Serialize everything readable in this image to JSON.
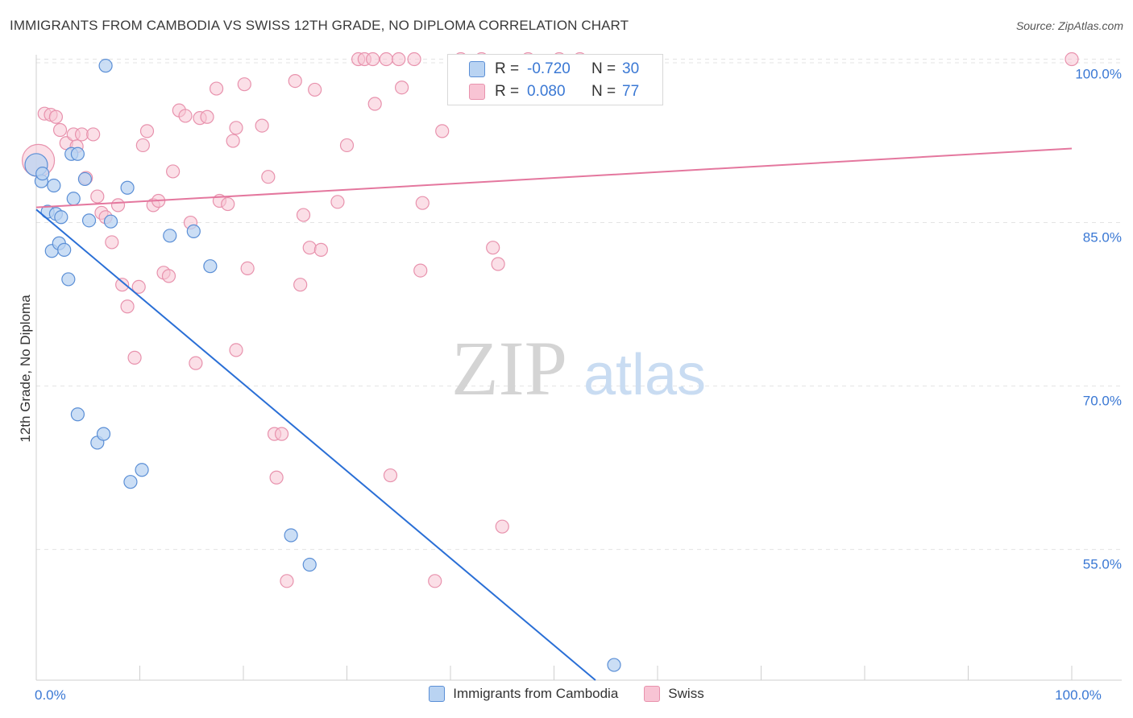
{
  "title": "IMMIGRANTS FROM CAMBODIA VS SWISS 12TH GRADE, NO DIPLOMA CORRELATION CHART",
  "source": "Source: ZipAtlas.com",
  "watermark": {
    "zip": "ZIP",
    "atlas": "atlas"
  },
  "stats": {
    "r_label": "R =",
    "n_label": "N =",
    "rows": [
      {
        "series": "Immigrants from Cambodia",
        "r": "-0.720",
        "n": "30"
      },
      {
        "series": "Swiss",
        "r": "0.080",
        "n": "77"
      }
    ]
  },
  "legend": [
    {
      "name": "Immigrants from Cambodia"
    },
    {
      "name": "Swiss"
    }
  ],
  "colors": {
    "blue_fill": "#b9d3f2",
    "blue_stroke": "#5b8fd6",
    "blue_line": "#2a6fd6",
    "pink_fill": "#f8c4d4",
    "pink_stroke": "#e892ad",
    "pink_line": "#e4779e",
    "axis_text": "#3a78d4",
    "grid": "#e3e3e3"
  },
  "chart_data": {
    "type": "scatter",
    "title": "IMMIGRANTS FROM CAMBODIA VS SWISS 12TH GRADE, NO DIPLOMA CORRELATION CHART",
    "xlabel": "",
    "ylabel": "12th Grade, No Diploma",
    "xlim": [
      0,
      100
    ],
    "ylim": [
      43,
      101
    ],
    "x_tick_labels": [
      {
        "value": 0,
        "label": "0.0%"
      },
      {
        "value": 100,
        "label": "100.0%"
      }
    ],
    "y_ticks": [
      {
        "value": 55,
        "label": "55.0%"
      },
      {
        "value": 70,
        "label": "70.0%"
      },
      {
        "value": 85,
        "label": "85.0%"
      },
      {
        "value": 100,
        "label": "100.0%"
      }
    ],
    "x_minor_ticks": [
      10,
      20,
      30,
      40,
      50,
      60,
      70,
      80,
      90,
      100
    ],
    "series": [
      {
        "name": "Immigrants from Cambodia",
        "color": "#5b8fd6",
        "points": [
          [
            0.0,
            90.3
          ],
          [
            0.5,
            88.8
          ],
          [
            0.6,
            89.5
          ],
          [
            1.1,
            86.0
          ],
          [
            1.7,
            88.4
          ],
          [
            1.9,
            85.8
          ],
          [
            2.4,
            85.5
          ],
          [
            1.5,
            82.4
          ],
          [
            2.2,
            83.1
          ],
          [
            2.7,
            82.5
          ],
          [
            3.1,
            79.8
          ],
          [
            3.4,
            91.3
          ],
          [
            3.6,
            87.2
          ],
          [
            4.0,
            91.3
          ],
          [
            4.7,
            89.0
          ],
          [
            5.1,
            85.2
          ],
          [
            7.2,
            85.1
          ],
          [
            8.8,
            88.2
          ],
          [
            12.9,
            83.8
          ],
          [
            15.2,
            84.2
          ],
          [
            16.8,
            81.0
          ],
          [
            4.0,
            67.4
          ],
          [
            5.9,
            64.8
          ],
          [
            6.5,
            65.6
          ],
          [
            9.1,
            61.2
          ],
          [
            10.2,
            62.3
          ],
          [
            24.6,
            56.3
          ],
          [
            26.4,
            53.6
          ],
          [
            55.8,
            44.4
          ],
          [
            6.7,
            99.4
          ]
        ],
        "trend": {
          "x": [
            0.0,
            54.0
          ],
          "y": [
            86.2,
            43.0
          ]
        }
      },
      {
        "name": "Swiss",
        "color": "#e892ad",
        "points": [
          [
            0.2,
            90.7
          ],
          [
            0.8,
            95.0
          ],
          [
            1.4,
            94.9
          ],
          [
            1.9,
            94.7
          ],
          [
            2.3,
            93.5
          ],
          [
            2.9,
            92.3
          ],
          [
            3.6,
            93.1
          ],
          [
            3.9,
            92.0
          ],
          [
            4.4,
            93.1
          ],
          [
            4.8,
            89.1
          ],
          [
            5.5,
            93.1
          ],
          [
            5.9,
            87.4
          ],
          [
            6.3,
            85.9
          ],
          [
            6.7,
            85.5
          ],
          [
            7.3,
            83.2
          ],
          [
            7.9,
            86.6
          ],
          [
            8.3,
            79.3
          ],
          [
            8.8,
            77.3
          ],
          [
            9.5,
            72.6
          ],
          [
            9.9,
            79.1
          ],
          [
            10.3,
            92.1
          ],
          [
            10.7,
            93.4
          ],
          [
            11.3,
            86.6
          ],
          [
            11.8,
            87.0
          ],
          [
            12.3,
            80.4
          ],
          [
            12.8,
            80.1
          ],
          [
            13.2,
            89.7
          ],
          [
            13.8,
            95.3
          ],
          [
            14.4,
            94.8
          ],
          [
            14.9,
            85.0
          ],
          [
            15.4,
            72.1
          ],
          [
            15.8,
            94.6
          ],
          [
            16.5,
            94.7
          ],
          [
            17.4,
            97.3
          ],
          [
            17.7,
            87.0
          ],
          [
            18.5,
            86.7
          ],
          [
            19.0,
            92.5
          ],
          [
            19.3,
            93.7
          ],
          [
            19.3,
            73.3
          ],
          [
            20.1,
            97.7
          ],
          [
            20.4,
            80.8
          ],
          [
            21.8,
            93.9
          ],
          [
            22.4,
            89.2
          ],
          [
            23.0,
            65.6
          ],
          [
            23.7,
            65.6
          ],
          [
            23.2,
            61.6
          ],
          [
            24.2,
            52.1
          ],
          [
            25.0,
            98.0
          ],
          [
            25.5,
            79.3
          ],
          [
            25.8,
            85.7
          ],
          [
            26.4,
            82.7
          ],
          [
            26.9,
            97.2
          ],
          [
            27.5,
            82.5
          ],
          [
            29.1,
            86.9
          ],
          [
            30.0,
            92.1
          ],
          [
            31.1,
            100.0
          ],
          [
            31.7,
            100.0
          ],
          [
            32.5,
            100.0
          ],
          [
            32.7,
            95.9
          ],
          [
            33.8,
            100.0
          ],
          [
            34.2,
            61.8
          ],
          [
            35.0,
            100.0
          ],
          [
            35.3,
            97.4
          ],
          [
            36.5,
            100.0
          ],
          [
            37.3,
            86.8
          ],
          [
            37.1,
            80.6
          ],
          [
            38.5,
            52.1
          ],
          [
            39.2,
            93.4
          ],
          [
            41.0,
            100.0
          ],
          [
            43.0,
            100.0
          ],
          [
            44.1,
            82.7
          ],
          [
            44.6,
            81.2
          ],
          [
            45.0,
            57.1
          ],
          [
            47.5,
            100.0
          ],
          [
            50.5,
            100.0
          ],
          [
            52.5,
            100.0
          ],
          [
            100.0,
            100.0
          ]
        ],
        "trend": {
          "x": [
            0.0,
            100.0
          ],
          "y": [
            86.4,
            91.8
          ]
        }
      }
    ]
  }
}
